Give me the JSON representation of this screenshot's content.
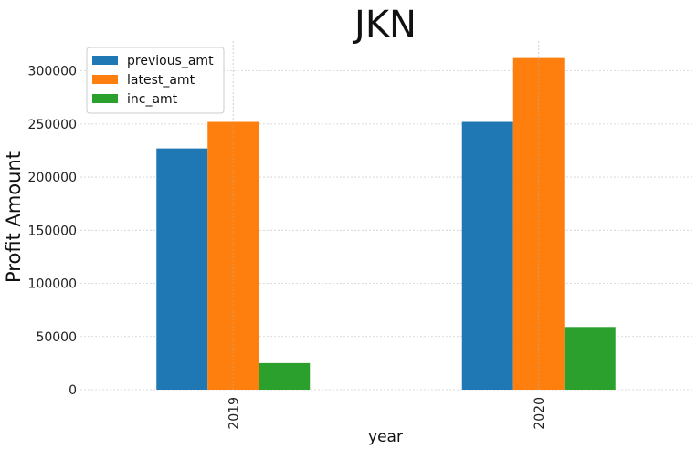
{
  "chart_data": {
    "type": "bar",
    "title": "JKN",
    "xlabel": "year",
    "ylabel": "Profit Amount",
    "categories": [
      "2019",
      "2020"
    ],
    "series": [
      {
        "name": "previous_amt",
        "color": "#1f77b4",
        "values": [
          227000,
          252000
        ]
      },
      {
        "name": "latest_amt",
        "color": "#ff7f0e",
        "values": [
          252000,
          312000
        ]
      },
      {
        "name": "inc_amt",
        "color": "#2ca02c",
        "values": [
          25000,
          59000
        ]
      }
    ],
    "ylim": [
      0,
      328000
    ],
    "yticks": [
      0,
      50000,
      100000,
      150000,
      200000,
      250000,
      300000
    ],
    "ytick_labels": [
      "0",
      "50000",
      "100000",
      "150000",
      "200000",
      "250000",
      "300000"
    ],
    "grid": true,
    "legend_position": "top-left"
  }
}
